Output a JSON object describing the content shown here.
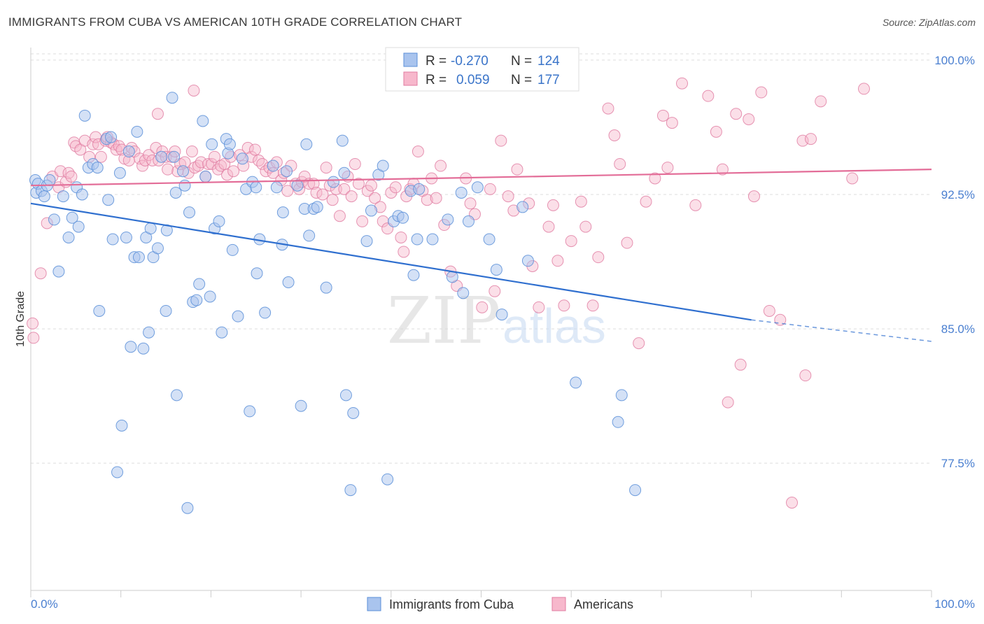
{
  "header": {
    "title": "IMMIGRANTS FROM CUBA VS AMERICAN 10TH GRADE CORRELATION CHART",
    "source": "Source: ZipAtlas.com"
  },
  "legend_box": {
    "row1": {
      "r_label": "R =",
      "r_value": "-0.270",
      "n_label": "N =",
      "n_value": "124"
    },
    "row2": {
      "r_label": "R =",
      "r_value": "0.059",
      "n_label": "N =",
      "n_value": "177"
    }
  },
  "watermark": {
    "zip": "ZIP",
    "atlas": "atlas"
  },
  "colors": {
    "cuba_fill": "#a9c4ee",
    "cuba_stroke": "#5b8fd8",
    "cuba_line": "#2f6fcf",
    "amer_fill": "#f7b8cc",
    "amer_stroke": "#e07ba0",
    "amer_line": "#e36d98",
    "tick_text": "#4a7fd0",
    "grid": "#dddddd"
  },
  "chart_data": {
    "type": "scatter",
    "title": "IMMIGRANTS FROM CUBA VS AMERICAN 10TH GRADE CORRELATION CHART",
    "xlabel": "",
    "ylabel": "10th Grade",
    "xlim": [
      0,
      100
    ],
    "ylim": [
      70.4,
      100.7
    ],
    "x_tick_labels": [
      "0.0%",
      "100.0%"
    ],
    "y_ticks": [
      100.0,
      92.5,
      85.0,
      77.5
    ],
    "y_tick_labels": [
      "100.0%",
      "92.5%",
      "85.0%",
      "77.5%"
    ],
    "grid": true,
    "legend_position": "top-center and bottom",
    "series": [
      {
        "name": "Immigrants from Cuba",
        "R": -0.27,
        "N": 124,
        "trend": {
          "x": [
            0,
            80
          ],
          "y": [
            92.0,
            85.5
          ],
          "dashed_to": [
            100,
            84.3
          ]
        },
        "points": [
          [
            0.5,
            93.3
          ],
          [
            0.6,
            92.6
          ],
          [
            0.8,
            93.1
          ],
          [
            1.2,
            92.7
          ],
          [
            1.5,
            92.4
          ],
          [
            1.8,
            93.0
          ],
          [
            2.1,
            93.3
          ],
          [
            2.6,
            91.1
          ],
          [
            3.1,
            88.2
          ],
          [
            3.6,
            92.4
          ],
          [
            4.2,
            90.1
          ],
          [
            4.6,
            91.2
          ],
          [
            5.1,
            92.9
          ],
          [
            5.3,
            90.7
          ],
          [
            5.7,
            92.5
          ],
          [
            6.0,
            96.9
          ],
          [
            6.4,
            94.0
          ],
          [
            6.9,
            94.2
          ],
          [
            7.4,
            94.0
          ],
          [
            7.6,
            86.0
          ],
          [
            8.4,
            95.6
          ],
          [
            8.6,
            92.2
          ],
          [
            8.9,
            95.7
          ],
          [
            9.1,
            90.0
          ],
          [
            9.6,
            77.0
          ],
          [
            9.9,
            93.7
          ],
          [
            10.1,
            79.6
          ],
          [
            10.6,
            90.1
          ],
          [
            10.9,
            94.9
          ],
          [
            11.1,
            84.0
          ],
          [
            11.5,
            89.0
          ],
          [
            11.8,
            96.0
          ],
          [
            12.0,
            89.0
          ],
          [
            12.5,
            83.9
          ],
          [
            12.8,
            90.1
          ],
          [
            13.1,
            84.8
          ],
          [
            13.3,
            90.6
          ],
          [
            13.6,
            89.0
          ],
          [
            14.1,
            89.5
          ],
          [
            14.5,
            94.6
          ],
          [
            15.0,
            86.0
          ],
          [
            15.1,
            90.5
          ],
          [
            15.7,
            97.9
          ],
          [
            15.9,
            94.6
          ],
          [
            16.1,
            92.6
          ],
          [
            16.2,
            81.3
          ],
          [
            16.9,
            93.8
          ],
          [
            17.1,
            93.0
          ],
          [
            17.4,
            75.0
          ],
          [
            17.6,
            91.5
          ],
          [
            18.0,
            86.5
          ],
          [
            18.4,
            86.6
          ],
          [
            18.7,
            87.5
          ],
          [
            19.1,
            96.6
          ],
          [
            19.4,
            93.5
          ],
          [
            19.9,
            86.8
          ],
          [
            20.1,
            95.3
          ],
          [
            20.4,
            90.6
          ],
          [
            20.9,
            91.0
          ],
          [
            21.2,
            84.8
          ],
          [
            21.7,
            95.6
          ],
          [
            21.9,
            94.8
          ],
          [
            22.1,
            95.3
          ],
          [
            22.4,
            89.4
          ],
          [
            23.0,
            85.7
          ],
          [
            23.5,
            94.5
          ],
          [
            23.9,
            92.8
          ],
          [
            24.3,
            80.4
          ],
          [
            24.6,
            93.2
          ],
          [
            25.0,
            92.9
          ],
          [
            25.1,
            88.1
          ],
          [
            25.4,
            90.0
          ],
          [
            26.0,
            85.9
          ],
          [
            26.9,
            94.1
          ],
          [
            27.3,
            92.9
          ],
          [
            27.9,
            89.7
          ],
          [
            28.0,
            91.5
          ],
          [
            28.4,
            93.8
          ],
          [
            28.6,
            87.6
          ],
          [
            29.6,
            93.0
          ],
          [
            30.0,
            80.7
          ],
          [
            30.4,
            91.7
          ],
          [
            30.6,
            95.3
          ],
          [
            30.9,
            90.2
          ],
          [
            31.4,
            91.7
          ],
          [
            31.8,
            91.8
          ],
          [
            32.8,
            87.3
          ],
          [
            33.6,
            93.2
          ],
          [
            34.6,
            95.5
          ],
          [
            34.8,
            93.7
          ],
          [
            35.0,
            81.3
          ],
          [
            35.5,
            76.0
          ],
          [
            35.8,
            80.3
          ],
          [
            37.3,
            89.9
          ],
          [
            37.8,
            91.6
          ],
          [
            38.6,
            93.6
          ],
          [
            39.1,
            94.1
          ],
          [
            39.6,
            76.6
          ],
          [
            40.3,
            91.0
          ],
          [
            40.8,
            91.3
          ],
          [
            41.3,
            91.2
          ],
          [
            42.2,
            92.7
          ],
          [
            42.5,
            88.0
          ],
          [
            42.9,
            90.0
          ],
          [
            43.1,
            92.8
          ],
          [
            44.6,
            90.0
          ],
          [
            46.3,
            91.1
          ],
          [
            46.8,
            87.9
          ],
          [
            47.8,
            92.6
          ],
          [
            48.0,
            87.0
          ],
          [
            48.6,
            91.0
          ],
          [
            49.6,
            92.9
          ],
          [
            50.9,
            90.0
          ],
          [
            51.7,
            88.3
          ],
          [
            52.3,
            85.8
          ],
          [
            54.6,
            91.8
          ],
          [
            55.2,
            88.8
          ],
          [
            60.5,
            82.0
          ],
          [
            65.2,
            79.8
          ],
          [
            65.6,
            81.3
          ],
          [
            67.1,
            76.0
          ]
        ]
      },
      {
        "name": "Americans",
        "R": 0.059,
        "N": 177,
        "trend": {
          "x": [
            0,
            100
          ],
          "y": [
            93.0,
            93.9
          ]
        },
        "points": [
          [
            0.2,
            85.3
          ],
          [
            0.3,
            84.5
          ],
          [
            1.1,
            88.1
          ],
          [
            1.8,
            90.9
          ],
          [
            2.4,
            93.5
          ],
          [
            3.1,
            92.9
          ],
          [
            3.3,
            93.8
          ],
          [
            3.9,
            93.2
          ],
          [
            4.2,
            93.7
          ],
          [
            4.5,
            93.5
          ],
          [
            4.8,
            95.4
          ],
          [
            5.0,
            95.2
          ],
          [
            5.5,
            95.0
          ],
          [
            6.0,
            95.5
          ],
          [
            6.5,
            94.6
          ],
          [
            6.9,
            95.3
          ],
          [
            7.2,
            95.7
          ],
          [
            7.5,
            95.3
          ],
          [
            7.8,
            94.6
          ],
          [
            8.3,
            95.5
          ],
          [
            8.5,
            95.7
          ],
          [
            8.9,
            95.4
          ],
          [
            9.2,
            95.3
          ],
          [
            9.5,
            95.0
          ],
          [
            9.8,
            95.2
          ],
          [
            10.1,
            95.0
          ],
          [
            10.4,
            94.5
          ],
          [
            10.9,
            94.4
          ],
          [
            11.2,
            95.1
          ],
          [
            11.5,
            94.9
          ],
          [
            12.1,
            94.5
          ],
          [
            12.4,
            94.1
          ],
          [
            12.7,
            94.4
          ],
          [
            13.1,
            94.7
          ],
          [
            13.5,
            94.4
          ],
          [
            13.9,
            95.1
          ],
          [
            14.2,
            94.4
          ],
          [
            14.6,
            94.9
          ],
          [
            15.0,
            94.6
          ],
          [
            15.2,
            93.9
          ],
          [
            15.6,
            94.6
          ],
          [
            16.0,
            94.9
          ],
          [
            16.3,
            93.8
          ],
          [
            16.6,
            94.2
          ],
          [
            17.1,
            94.3
          ],
          [
            17.5,
            93.7
          ],
          [
            17.9,
            94.9
          ],
          [
            18.2,
            94.0
          ],
          [
            18.6,
            94.1
          ],
          [
            18.9,
            94.3
          ],
          [
            19.4,
            93.5
          ],
          [
            19.7,
            94.2
          ],
          [
            20.1,
            94.2
          ],
          [
            20.4,
            94.6
          ],
          [
            20.8,
            93.9
          ],
          [
            21.1,
            94.1
          ],
          [
            21.5,
            94.2
          ],
          [
            21.8,
            93.6
          ],
          [
            22.2,
            94.6
          ],
          [
            22.5,
            93.8
          ],
          [
            23.2,
            94.7
          ],
          [
            23.6,
            94.1
          ],
          [
            24.1,
            95.1
          ],
          [
            24.5,
            94.6
          ],
          [
            24.9,
            95.0
          ],
          [
            25.3,
            94.4
          ],
          [
            25.7,
            94.2
          ],
          [
            26.1,
            93.8
          ],
          [
            26.5,
            94.0
          ],
          [
            26.9,
            93.7
          ],
          [
            27.3,
            94.3
          ],
          [
            27.8,
            93.3
          ],
          [
            28.1,
            93.7
          ],
          [
            28.5,
            92.7
          ],
          [
            28.9,
            94.1
          ],
          [
            29.4,
            93.1
          ],
          [
            29.8,
            92.8
          ],
          [
            30.1,
            93.2
          ],
          [
            30.4,
            93.5
          ],
          [
            30.9,
            93.1
          ],
          [
            31.4,
            93.1
          ],
          [
            31.7,
            92.6
          ],
          [
            32.4,
            92.5
          ],
          [
            32.8,
            94.0
          ],
          [
            33.2,
            93.0
          ],
          [
            33.5,
            92.2
          ],
          [
            33.9,
            92.8
          ],
          [
            34.3,
            91.3
          ],
          [
            34.8,
            92.8
          ],
          [
            35.2,
            93.5
          ],
          [
            35.6,
            92.4
          ],
          [
            36.0,
            94.2
          ],
          [
            36.4,
            93.1
          ],
          [
            36.8,
            91.0
          ],
          [
            37.4,
            92.7
          ],
          [
            37.8,
            93.0
          ],
          [
            38.2,
            92.3
          ],
          [
            38.8,
            91.8
          ],
          [
            39.1,
            91.0
          ],
          [
            39.6,
            90.6
          ],
          [
            40.0,
            92.6
          ],
          [
            40.5,
            92.9
          ],
          [
            41.1,
            90.1
          ],
          [
            41.4,
            89.3
          ],
          [
            41.7,
            92.4
          ],
          [
            42.1,
            92.8
          ],
          [
            42.5,
            93.1
          ],
          [
            43.0,
            94.9
          ],
          [
            43.5,
            92.7
          ],
          [
            44.0,
            92.2
          ],
          [
            44.5,
            93.4
          ],
          [
            45.0,
            92.3
          ],
          [
            45.5,
            94.1
          ],
          [
            45.9,
            90.8
          ],
          [
            46.6,
            88.2
          ],
          [
            47.3,
            87.4
          ],
          [
            48.3,
            93.4
          ],
          [
            48.8,
            92.0
          ],
          [
            49.3,
            91.4
          ],
          [
            50.1,
            86.2
          ],
          [
            51.0,
            92.8
          ],
          [
            51.5,
            87.1
          ],
          [
            52.2,
            95.5
          ],
          [
            53.0,
            92.4
          ],
          [
            53.6,
            91.6
          ],
          [
            54.0,
            93.9
          ],
          [
            55.3,
            92.0
          ],
          [
            55.7,
            88.5
          ],
          [
            56.4,
            86.2
          ],
          [
            57.5,
            90.7
          ],
          [
            58.0,
            91.9
          ],
          [
            58.5,
            88.8
          ],
          [
            59.2,
            86.3
          ],
          [
            60.0,
            89.9
          ],
          [
            61.1,
            92.1
          ],
          [
            61.6,
            90.7
          ],
          [
            62.4,
            86.3
          ],
          [
            63.0,
            89.0
          ],
          [
            64.1,
            97.3
          ],
          [
            64.8,
            95.8
          ],
          [
            65.4,
            94.2
          ],
          [
            66.2,
            89.8
          ],
          [
            67.5,
            84.2
          ],
          [
            68.3,
            92.1
          ],
          [
            69.3,
            93.4
          ],
          [
            70.2,
            96.9
          ],
          [
            70.7,
            94.0
          ],
          [
            71.2,
            96.5
          ],
          [
            72.3,
            98.7
          ],
          [
            73.8,
            91.9
          ],
          [
            75.2,
            98.0
          ],
          [
            76.1,
            96.0
          ],
          [
            76.8,
            93.9
          ],
          [
            77.4,
            80.9
          ],
          [
            78.3,
            97.0
          ],
          [
            78.8,
            83.0
          ],
          [
            79.7,
            96.7
          ],
          [
            80.3,
            92.4
          ],
          [
            81.1,
            98.2
          ],
          [
            82.0,
            86.0
          ],
          [
            83.2,
            85.5
          ],
          [
            84.5,
            75.3
          ],
          [
            85.7,
            95.5
          ],
          [
            86.0,
            82.4
          ],
          [
            86.6,
            95.6
          ],
          [
            87.7,
            97.7
          ],
          [
            91.2,
            93.4
          ],
          [
            92.5,
            98.4
          ],
          [
            14.1,
            97.0
          ],
          [
            18.1,
            98.3
          ]
        ]
      }
    ]
  }
}
